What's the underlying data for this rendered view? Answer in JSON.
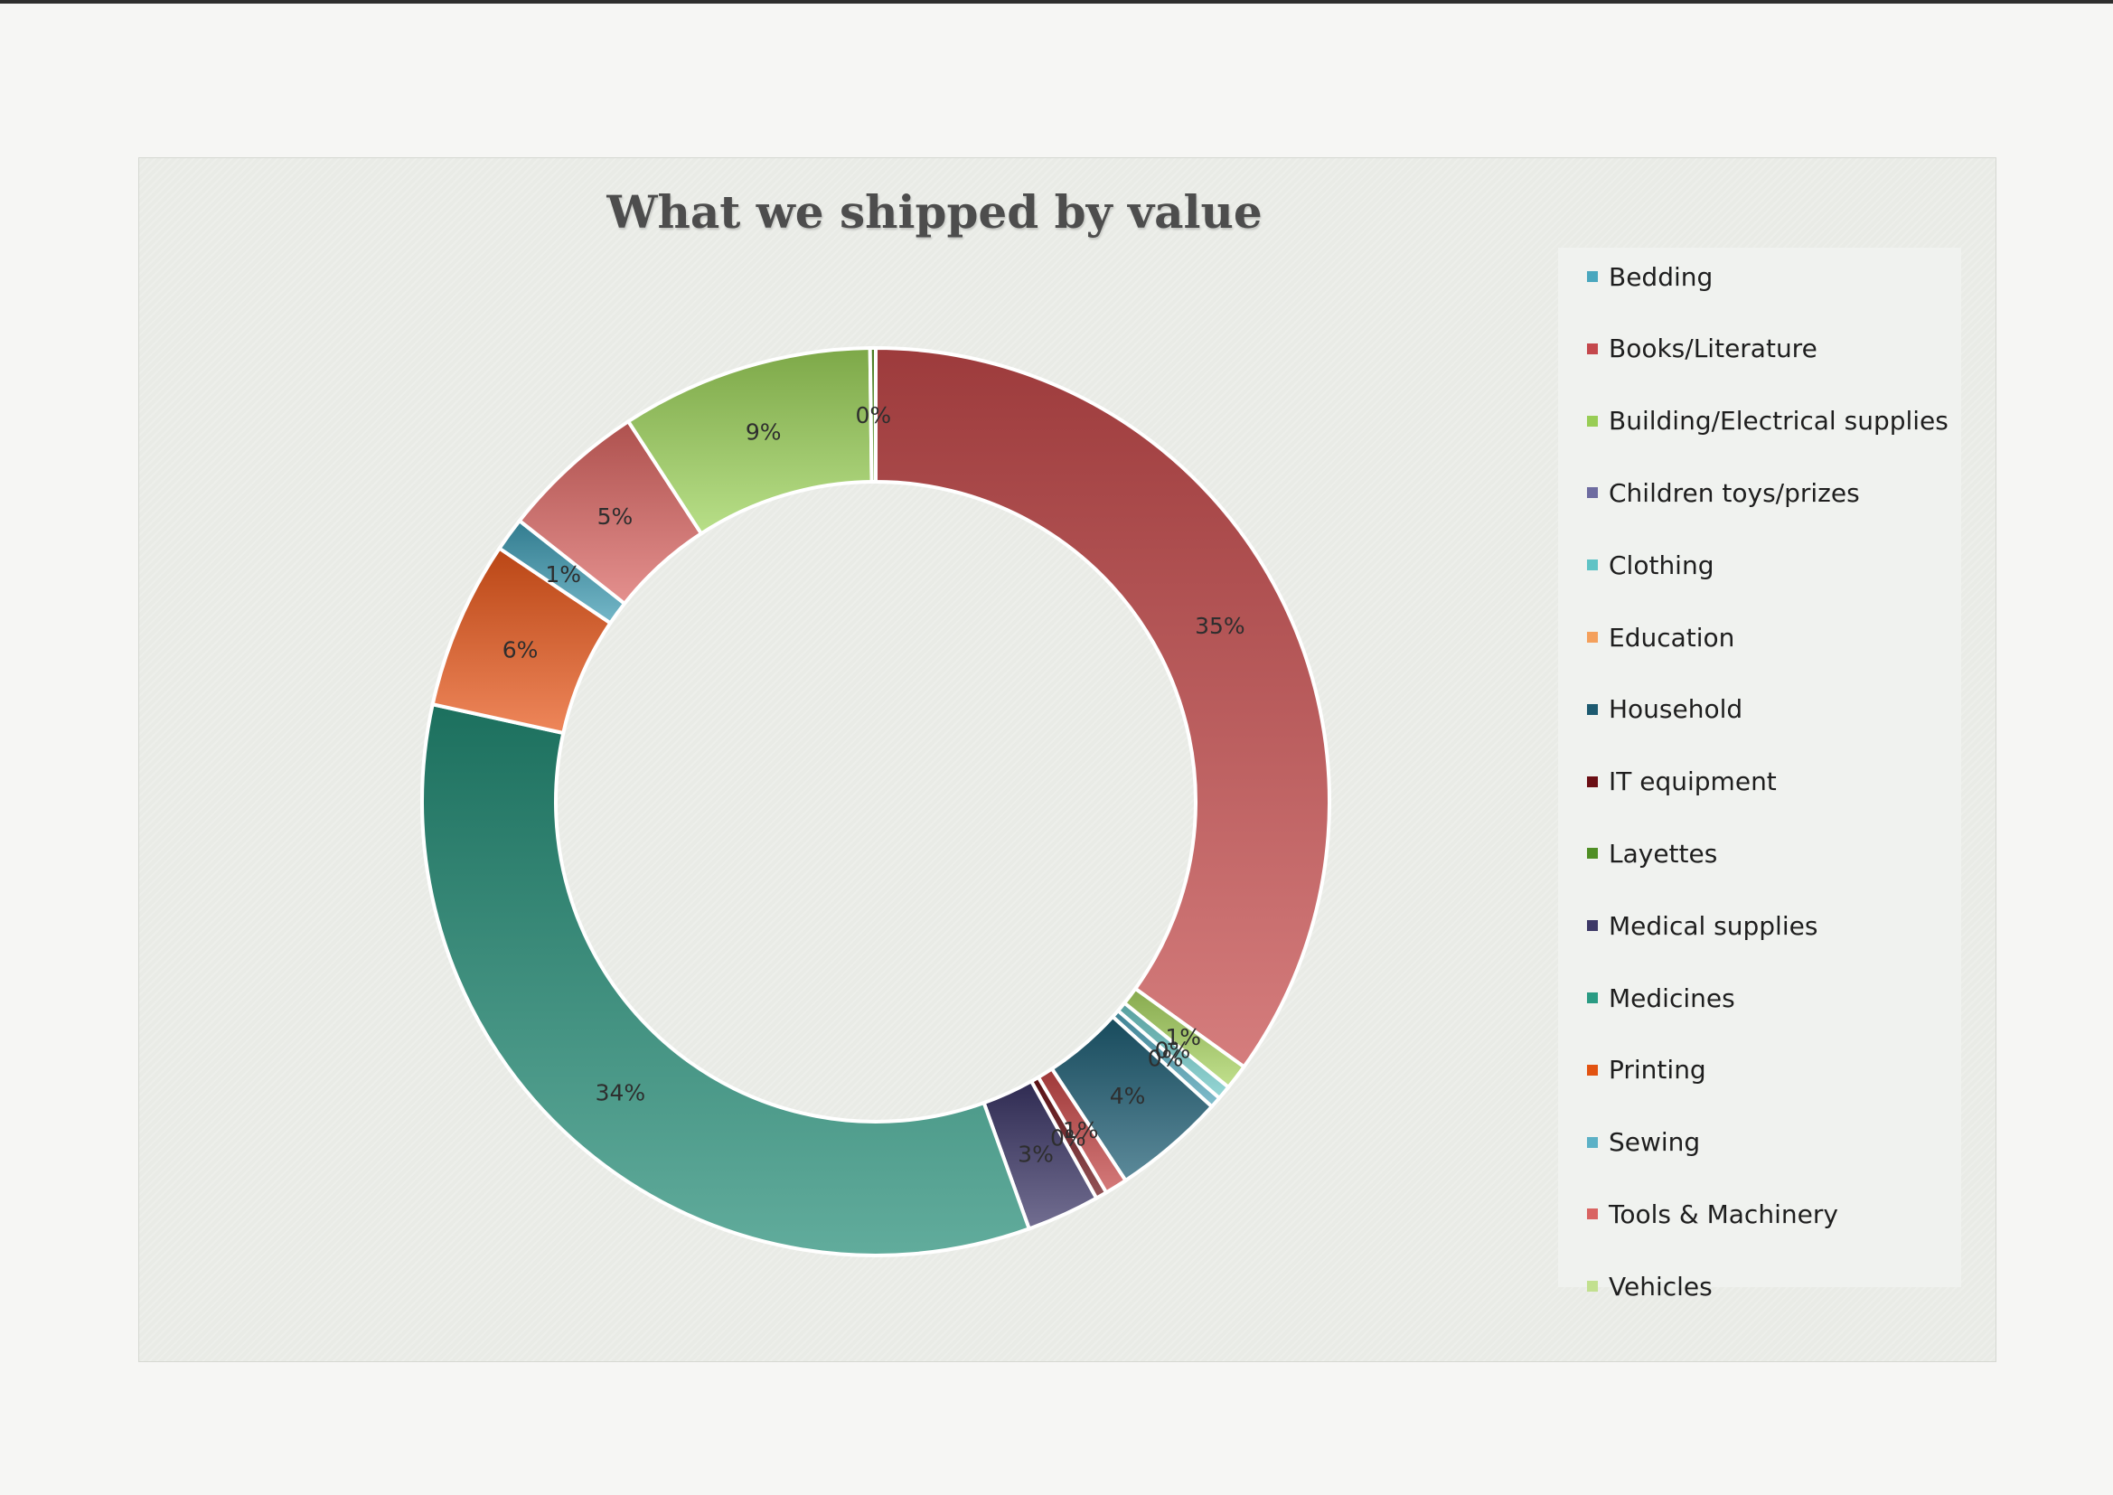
{
  "chart_data": {
    "type": "pie",
    "subtype": "donut",
    "title": "What we shipped by value",
    "legend_position": "right",
    "slices": [
      {
        "name": "Books/Literature",
        "value": 35,
        "label": "35%",
        "color": "#c44a4b"
      },
      {
        "name": "Vehicles",
        "value": 0.9,
        "label": "1%",
        "color": "#a9d461"
      },
      {
        "name": "Clothing",
        "value": 0.5,
        "label": "0%",
        "color": "#6dc7c6"
      },
      {
        "name": "Sewing",
        "value": 0.4,
        "label": "0%",
        "color": "#4fa3b8"
      },
      {
        "name": "Household",
        "value": 4,
        "label": "4%",
        "color": "#1d5d73"
      },
      {
        "name": "Tools & Machinery",
        "value": 0.8,
        "label": "1%",
        "color": "#c54646"
      },
      {
        "name": "IT equipment",
        "value": 0.4,
        "label": "0%",
        "color": "#6b1116"
      },
      {
        "name": "Medical supplies",
        "value": 2.6,
        "label": "3%",
        "color": "#3b3666"
      },
      {
        "name": "Medicines",
        "value": 34,
        "label": "34%",
        "color": "#238c76"
      },
      {
        "name": "Printing",
        "value": 6,
        "label": "6%",
        "color": "#e8571a"
      },
      {
        "name": "Bedding",
        "value": 1.2,
        "label": "1%",
        "color": "#3e9bb3"
      },
      {
        "name": "Children toys/prizes",
        "value": 5.2,
        "label": "5%",
        "color": "#da6562"
      },
      {
        "name": "Building/Electrical supplies",
        "value": 9,
        "label": "9%",
        "color": "#9cd25a"
      },
      {
        "name": "Layettes",
        "value": 0.2,
        "label": "0%",
        "color": "#5d9a2a"
      }
    ],
    "legend": [
      {
        "name": "Bedding",
        "color": "#4aa7be"
      },
      {
        "name": "Books/Literature",
        "color": "#c4484c"
      },
      {
        "name": "Building/Electrical supplies",
        "color": "#98cd55"
      },
      {
        "name": "Children toys/prizes",
        "color": "#6e6ca0"
      },
      {
        "name": "Clothing",
        "color": "#5fc3c5"
      },
      {
        "name": "Education",
        "color": "#f4a05c"
      },
      {
        "name": "Household",
        "color": "#1d5a70"
      },
      {
        "name": "IT equipment",
        "color": "#6b0f14"
      },
      {
        "name": "Layettes",
        "color": "#4f8e24"
      },
      {
        "name": "Medical supplies",
        "color": "#3d3967"
      },
      {
        "name": "Medicines",
        "color": "#2a9b83"
      },
      {
        "name": "Printing",
        "color": "#e25311"
      },
      {
        "name": "Sewing",
        "color": "#5cb1c6"
      },
      {
        "name": "Tools & Machinery",
        "color": "#d96462"
      },
      {
        "name": "Vehicles",
        "color": "#c2e08f"
      }
    ]
  }
}
